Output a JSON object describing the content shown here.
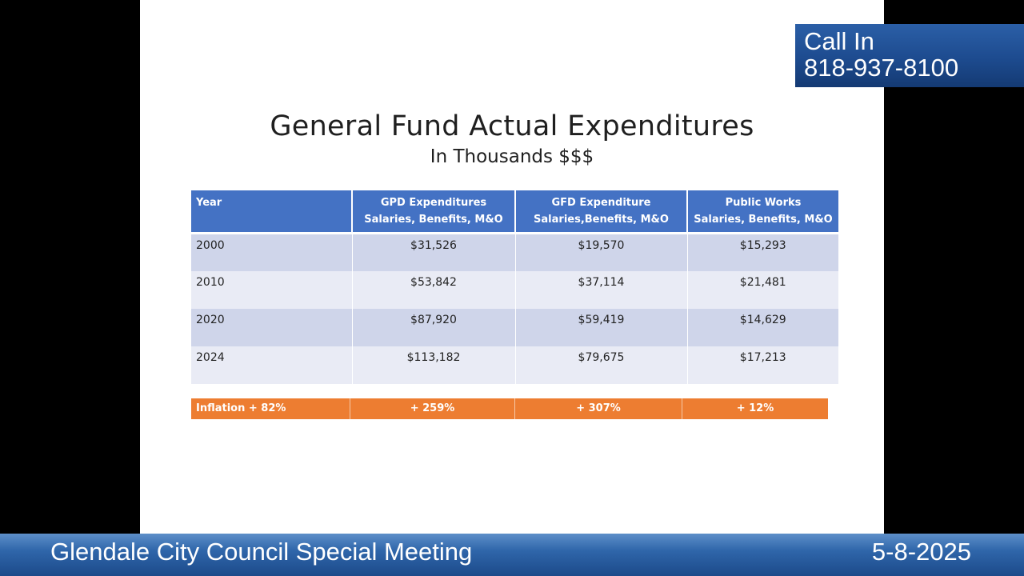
{
  "slide": {
    "title": "General Fund Actual Expenditures",
    "subtitle": "In Thousands $$$",
    "table": {
      "headers": [
        {
          "line1": "Year",
          "line2": ""
        },
        {
          "line1": "GPD Expenditures",
          "line2": "Salaries, Benefits, M&O"
        },
        {
          "line1": "GFD Expenditure",
          "line2": "Salaries,Benefits,  M&O"
        },
        {
          "line1": "Public Works",
          "line2": "Salaries, Benefits, M&O"
        }
      ],
      "rows": [
        [
          "2000",
          "$31,526",
          "$19,570",
          "$15,293"
        ],
        [
          "2010",
          "$53,842",
          "$37,114",
          "$21,481"
        ],
        [
          "2020",
          "$87,920",
          "$59,419",
          "$14,629"
        ],
        [
          "2024",
          "$113,182",
          "$79,675",
          "$17,213"
        ]
      ],
      "header_color": "#4472c4",
      "row_colors": [
        "#cfd5ea",
        "#e9ebf5"
      ]
    },
    "inflation_row": {
      "cells": [
        "Inflation + 82%",
        "+ 259%",
        "+ 307%",
        "+ 12%"
      ],
      "color": "#ed7d31"
    }
  },
  "overlay": {
    "call_in_label": "Call In",
    "call_in_number": "818-937-8100"
  },
  "lower_third": {
    "meeting_title": "Glendale City Council Special Meeting",
    "date": "5-8-2025"
  }
}
